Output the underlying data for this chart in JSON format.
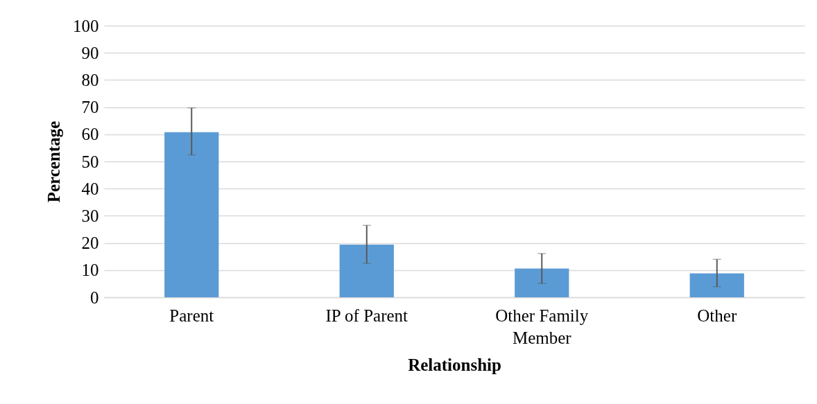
{
  "chart_data": {
    "type": "bar",
    "xlabel": "Relationship",
    "ylabel": "Percentage",
    "categories": [
      "Parent",
      "IP of Parent",
      "Other Family Member",
      "Other"
    ],
    "values": [
      60.8,
      19.4,
      10.6,
      8.8
    ],
    "errors": [
      [
        52.4,
        69.7
      ],
      [
        12.5,
        26.5
      ],
      [
        5.1,
        16.1
      ],
      [
        3.9,
        14.0
      ]
    ],
    "color": "#5b9bd5",
    "ylim": [
      0,
      100
    ],
    "yticks": [
      0,
      10,
      20,
      30,
      40,
      50,
      60,
      70,
      80,
      90,
      100
    ],
    "grid": "y"
  }
}
